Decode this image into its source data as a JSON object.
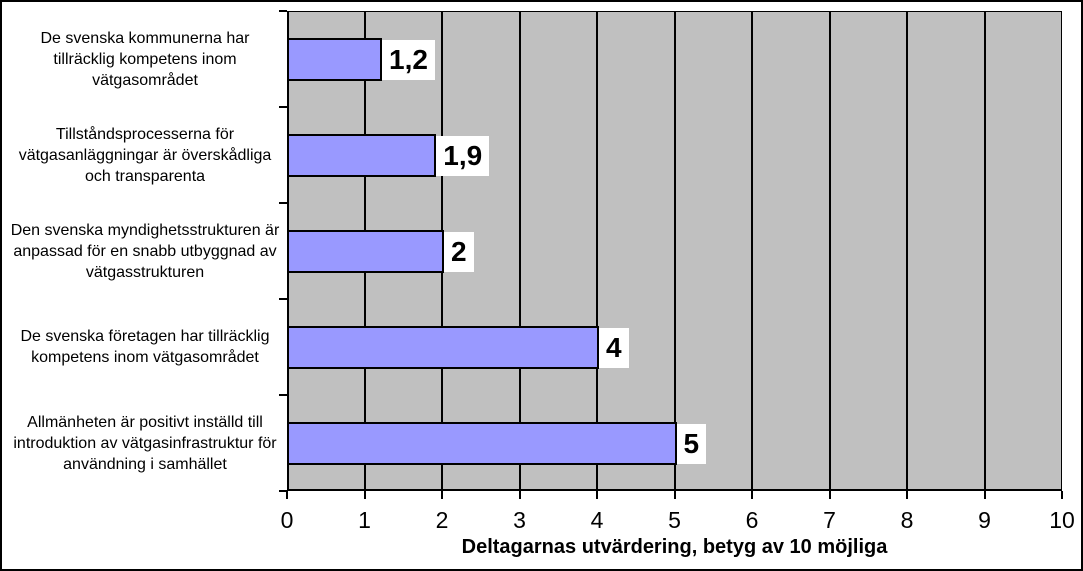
{
  "chart_data": {
    "type": "bar",
    "orientation": "horizontal",
    "categories": [
      "De svenska kommunerna har tillräcklig kompetens inom vätgasområdet",
      "Tillståndsprocesserna för vätgasanläggningar är överskådliga och transparenta",
      "Den svenska myndighetsstrukturen är anpassad för en snabb utbyggnad av vätgasstrukturen",
      "De svenska företagen har tillräcklig kompetens inom vätgasområdet",
      "Allmänheten är positivt inställd till introduktion av vätgasinfrastruktur för användning i samhället"
    ],
    "values": [
      1.2,
      1.9,
      2,
      4,
      5
    ],
    "value_labels": [
      "1,2",
      "1,9",
      "2",
      "4",
      "5"
    ],
    "title": "",
    "xlabel": "Deltagarnas utvärdering, betyg av 10 möjliga",
    "ylabel": "",
    "xlim": [
      0,
      10
    ],
    "xticks": [
      0,
      1,
      2,
      3,
      4,
      5,
      6,
      7,
      8,
      9,
      10
    ],
    "grid": "vertical",
    "legend": "none",
    "colors": {
      "bar_fill": "#9999FF",
      "bar_border": "#000000",
      "plot_background": "#C0C0C0",
      "chart_background": "#FFFFFF",
      "gridline": "#000000",
      "text": "#000000",
      "value_label_background": "#FFFFFF"
    }
  }
}
